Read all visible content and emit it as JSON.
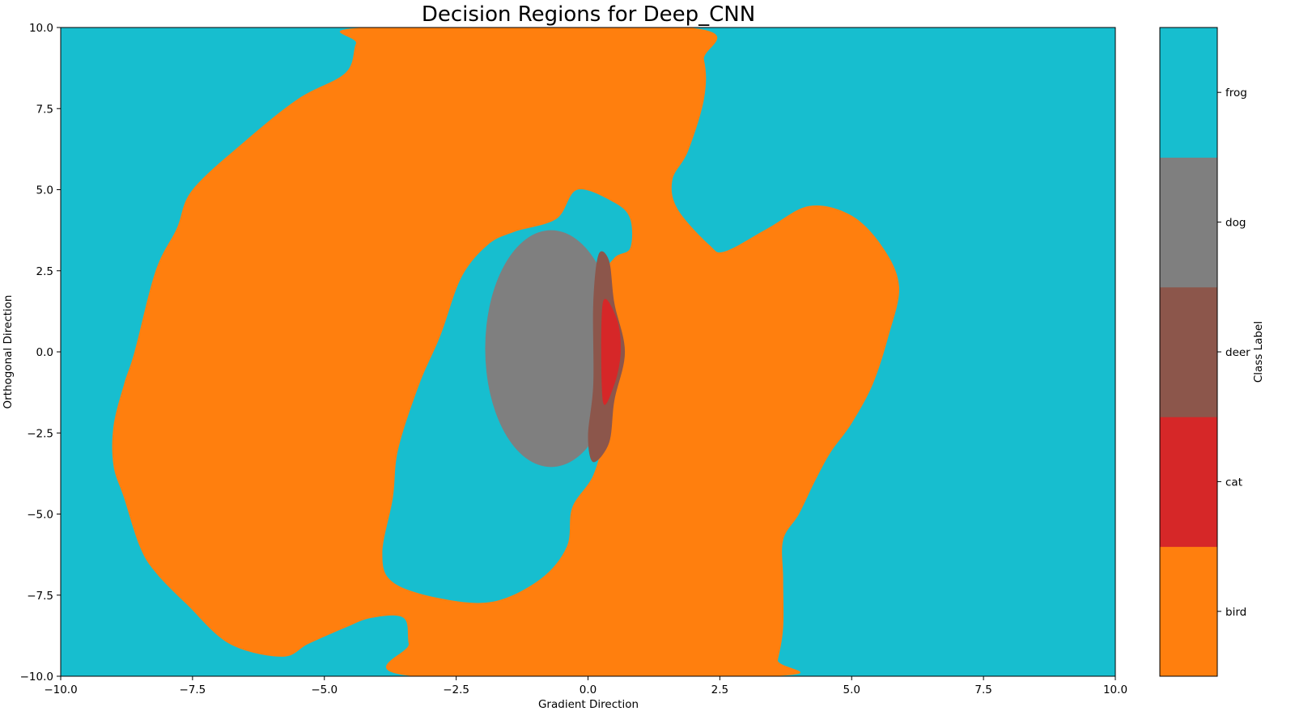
{
  "chart_data": {
    "type": "heatmap",
    "subtype": "decision-regions",
    "title": "Decision Regions for Deep_CNN",
    "xlabel": "Gradient Direction",
    "ylabel": "Orthogonal Direction",
    "xlim": [
      -10,
      10
    ],
    "ylim": [
      -10,
      10
    ],
    "xticks": [
      -10.0,
      -7.5,
      -5.0,
      -2.5,
      0.0,
      2.5,
      5.0,
      7.5,
      10.0
    ],
    "xtick_labels": [
      "−10.0",
      "−7.5",
      "−5.0",
      "−2.5",
      "0.0",
      "2.5",
      "5.0",
      "7.5",
      "10.0"
    ],
    "yticks": [
      -10.0,
      -7.5,
      -5.0,
      -2.5,
      0.0,
      2.5,
      5.0,
      7.5,
      10.0
    ],
    "ytick_labels": [
      "−10.0",
      "−7.5",
      "−5.0",
      "−2.5",
      "0.0",
      "2.5",
      "5.0",
      "7.5",
      "10.0"
    ],
    "grid": false,
    "background_class": "frog",
    "classes": [
      {
        "name": "bird",
        "color": "#ff7f0e"
      },
      {
        "name": "cat",
        "color": "#d62728"
      },
      {
        "name": "deer",
        "color": "#8c564b"
      },
      {
        "name": "dog",
        "color": "#7f7f7f"
      },
      {
        "name": "frog",
        "color": "#17becf"
      }
    ],
    "colorbar": {
      "label": "Class Label",
      "position": "right",
      "ticks": [
        "bird",
        "cat",
        "deer",
        "dog",
        "frog"
      ]
    },
    "regions": [
      {
        "class": "bird",
        "points": [
          [
            -4.2,
            10
          ],
          [
            1.9,
            10
          ],
          [
            2.2,
            9.0
          ],
          [
            2.2,
            7.8
          ],
          [
            1.9,
            6.2
          ],
          [
            1.6,
            5.3
          ],
          [
            1.7,
            4.4
          ],
          [
            2.3,
            3.3
          ],
          [
            2.6,
            3.1
          ],
          [
            3.4,
            3.8
          ],
          [
            4.2,
            4.5
          ],
          [
            5.0,
            4.2
          ],
          [
            5.6,
            3.2
          ],
          [
            5.9,
            2.0
          ],
          [
            5.7,
            0.5
          ],
          [
            5.4,
            -1.0
          ],
          [
            5.0,
            -2.2
          ],
          [
            4.6,
            -3.1
          ],
          [
            4.3,
            -4.0
          ],
          [
            4.0,
            -5.0
          ],
          [
            3.7,
            -5.8
          ],
          [
            3.7,
            -7.0
          ],
          [
            3.7,
            -8.5
          ],
          [
            3.6,
            -9.5
          ],
          [
            3.5,
            -10
          ],
          [
            -3.3,
            -10
          ],
          [
            -3.4,
            -9.0
          ],
          [
            -3.5,
            -8.2
          ],
          [
            -4.1,
            -8.2
          ],
          [
            -4.6,
            -8.5
          ],
          [
            -5.3,
            -9.0
          ],
          [
            -5.8,
            -9.4
          ],
          [
            -6.8,
            -9.0
          ],
          [
            -7.6,
            -7.8
          ],
          [
            -8.2,
            -6.8
          ],
          [
            -8.5,
            -6.0
          ],
          [
            -8.8,
            -4.5
          ],
          [
            -9.0,
            -3.5
          ],
          [
            -9.0,
            -2.3
          ],
          [
            -8.8,
            -1.0
          ],
          [
            -8.6,
            0.0
          ],
          [
            -8.2,
            2.5
          ],
          [
            -7.8,
            3.8
          ],
          [
            -7.5,
            5.0
          ],
          [
            -6.5,
            6.5
          ],
          [
            -5.5,
            7.8
          ],
          [
            -4.6,
            8.6
          ],
          [
            -4.4,
            9.5
          ]
        ]
      },
      {
        "class": "frog",
        "points": [
          [
            -0.2,
            5.0
          ],
          [
            0.5,
            4.6
          ],
          [
            0.8,
            4.1
          ],
          [
            0.8,
            3.2
          ],
          [
            0.5,
            2.9
          ],
          [
            0.2,
            2.1
          ],
          [
            0.4,
            1.0
          ],
          [
            0.5,
            0.0
          ],
          [
            0.3,
            -1.0
          ],
          [
            0.3,
            -2.5
          ],
          [
            0.1,
            -3.8
          ],
          [
            -0.3,
            -4.8
          ],
          [
            -0.4,
            -6.0
          ],
          [
            -0.9,
            -7.0
          ],
          [
            -1.8,
            -7.7
          ],
          [
            -2.8,
            -7.6
          ],
          [
            -3.7,
            -7.1
          ],
          [
            -3.9,
            -6.2
          ],
          [
            -3.7,
            -4.5
          ],
          [
            -3.6,
            -3.0
          ],
          [
            -3.2,
            -1.0
          ],
          [
            -2.8,
            0.5
          ],
          [
            -2.4,
            2.3
          ],
          [
            -1.9,
            3.3
          ],
          [
            -1.4,
            3.7
          ],
          [
            -0.6,
            4.1
          ]
        ]
      },
      {
        "class": "dog",
        "ellipse": {
          "cx": -0.7,
          "cy": 0.1,
          "rx": 1.25,
          "ry": 3.65
        }
      },
      {
        "class": "deer",
        "points": [
          [
            0.2,
            3.0
          ],
          [
            0.4,
            2.8
          ],
          [
            0.5,
            1.5
          ],
          [
            0.7,
            0.0
          ],
          [
            0.5,
            -1.5
          ],
          [
            0.4,
            -2.8
          ],
          [
            0.1,
            -3.4
          ],
          [
            0.0,
            -2.6
          ],
          [
            0.1,
            -1.0
          ],
          [
            0.1,
            1.5
          ]
        ]
      },
      {
        "class": "cat",
        "points": [
          [
            0.28,
            1.5
          ],
          [
            0.55,
            1.0
          ],
          [
            0.62,
            0.0
          ],
          [
            0.5,
            -1.0
          ],
          [
            0.28,
            -1.5
          ]
        ]
      }
    ]
  }
}
